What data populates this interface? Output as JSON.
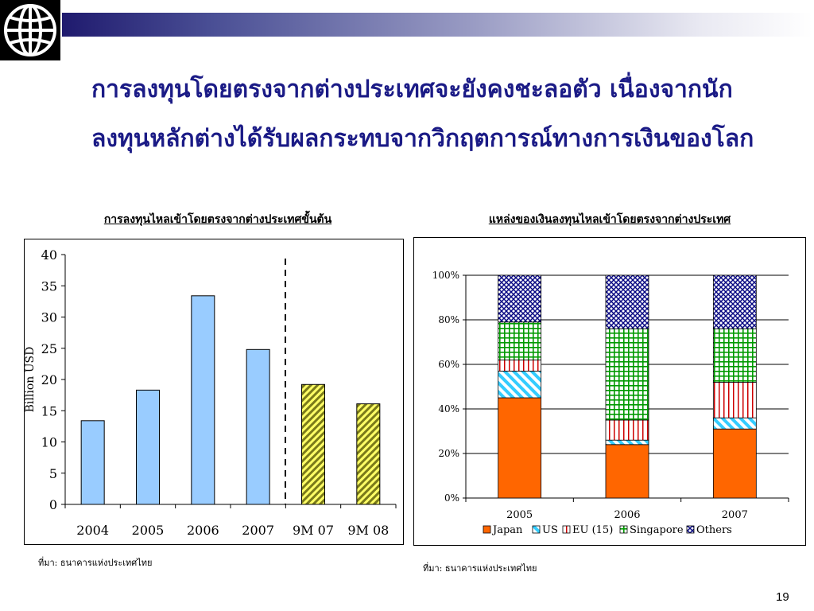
{
  "title_lines": [
    "การลงทุนโดยตรงจากต่างประเทศจะยังคงชะลอตัว เนื่องจากนัก",
    "ลงทุนหลักต่างได้รับผลกระทบจากวิกฤตการณ์ทางการเงินของโลก"
  ],
  "left_subtitle": "การลงทุนไหลเข้าโดยตรงจากต่างประเทศขั้นต้น",
  "right_subtitle": "แหล่งของเงินลงทุนไหลเข้าโดยตรงจากต่างประเทศ",
  "left_source": "ที่มา: ธนาคารแห่งประเทศไทย",
  "right_source": "ที่มา: ธนาคารแห่งประเทศไทย",
  "page_number": "19",
  "colors": {
    "title": "#1b1b86",
    "bar_blue": "#99ccff",
    "bar_hatch": "#999933",
    "japan": "#ff6600",
    "us": "#33ccff",
    "eu": "#cc0000",
    "singapore": "#009900",
    "others": "#000080"
  },
  "chart_data": [
    {
      "type": "bar",
      "title": "",
      "ylabel": "Billion USD",
      "xlabel": "",
      "ylim": [
        0,
        40
      ],
      "yticks": [
        "0",
        "5",
        "10",
        "15",
        "20",
        "25",
        "30",
        "35",
        "40"
      ],
      "categories": [
        "2004",
        "2005",
        "2006",
        "2007",
        "9M 07",
        "9M 08"
      ],
      "values": [
        13.4,
        18.3,
        33.4,
        24.8,
        19.2,
        16.1
      ],
      "grid": false
    },
    {
      "type": "bar",
      "stacked": true,
      "title": "",
      "ylim": [
        0,
        100
      ],
      "yticks": [
        "0%",
        "20%",
        "40%",
        "60%",
        "80%",
        "100%"
      ],
      "categories": [
        "2005",
        "2006",
        "2007"
      ],
      "series": [
        {
          "name": "Japan",
          "values": [
            45,
            24,
            31
          ]
        },
        {
          "name": "US",
          "values": [
            12,
            2,
            5
          ]
        },
        {
          "name": "EU (15)",
          "values": [
            5,
            9,
            16
          ]
        },
        {
          "name": "Singapore",
          "values": [
            17,
            41,
            24
          ]
        },
        {
          "name": "Others",
          "values": [
            21,
            24,
            24
          ]
        }
      ],
      "legend": "bottom",
      "grid": true
    }
  ]
}
